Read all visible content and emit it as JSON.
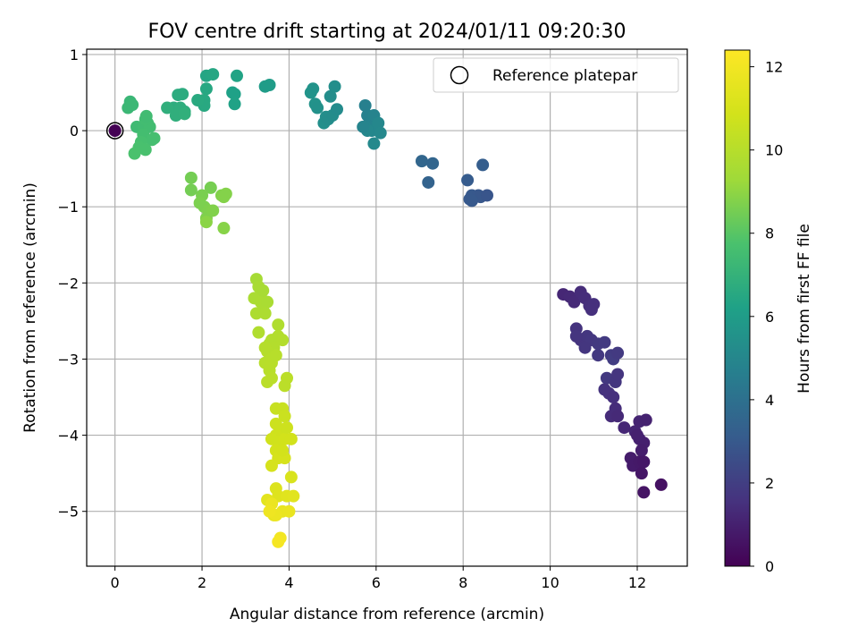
{
  "chart_data": {
    "type": "scatter",
    "title": "FOV centre drift starting at 2024/01/11 09:20:30",
    "xlabel": "Angular distance from reference (arcmin)",
    "ylabel": "Rotation from reference (arcmin)",
    "xlim": [
      -0.65,
      13.15
    ],
    "ylim": [
      -5.72,
      1.07
    ],
    "x_ticks": [
      0,
      2,
      4,
      6,
      8,
      10,
      12
    ],
    "y_ticks": [
      1,
      0,
      -1,
      -2,
      -3,
      -4,
      -5
    ],
    "grid": true,
    "legend": {
      "position": "top-right",
      "entries": [
        "Reference platepar"
      ]
    },
    "colorbar": {
      "label": "Hours from first FF file",
      "min": 0,
      "max": 12.4,
      "ticks": [
        0,
        2,
        4,
        6,
        8,
        10,
        12
      ],
      "colormap": "viridis"
    },
    "reference_point": {
      "x": 0,
      "y": 0
    },
    "points": [
      [
        10.3,
        -2.15,
        1.2
      ],
      [
        10.45,
        -2.18,
        1.25
      ],
      [
        10.55,
        -2.25,
        1.3
      ],
      [
        10.7,
        -2.12,
        1.35
      ],
      [
        10.8,
        -2.2,
        1.4
      ],
      [
        10.9,
        -2.3,
        1.45
      ],
      [
        11.0,
        -2.28,
        1.5
      ],
      [
        10.95,
        -2.35,
        1.5
      ],
      [
        10.6,
        -2.6,
        1.6
      ],
      [
        10.7,
        -2.75,
        1.65
      ],
      [
        10.85,
        -2.7,
        1.7
      ],
      [
        10.95,
        -2.75,
        1.75
      ],
      [
        11.1,
        -2.8,
        1.8
      ],
      [
        11.25,
        -2.78,
        1.85
      ],
      [
        11.4,
        -2.95,
        1.9
      ],
      [
        11.45,
        -3.0,
        1.95
      ],
      [
        11.3,
        -3.25,
        1.8
      ],
      [
        11.5,
        -3.3,
        1.7
      ],
      [
        11.55,
        -3.2,
        1.65
      ],
      [
        11.25,
        -3.4,
        1.6
      ],
      [
        11.35,
        -3.45,
        1.55
      ],
      [
        11.45,
        -3.5,
        1.5
      ],
      [
        11.5,
        -3.65,
        1.4
      ],
      [
        11.4,
        -3.75,
        1.35
      ],
      [
        11.55,
        -3.75,
        1.3
      ],
      [
        11.7,
        -3.9,
        1.2
      ],
      [
        11.95,
        -3.95,
        1.15
      ],
      [
        12.05,
        -3.82,
        1.1
      ],
      [
        12.2,
        -3.8,
        1.05
      ],
      [
        12.05,
        -4.05,
        1.0
      ],
      [
        12.15,
        -4.1,
        0.95
      ],
      [
        12.1,
        -4.2,
        0.9
      ],
      [
        11.85,
        -4.3,
        0.85
      ],
      [
        11.9,
        -4.4,
        0.8
      ],
      [
        12.05,
        -4.35,
        0.75
      ],
      [
        12.15,
        -4.35,
        0.7
      ],
      [
        12.1,
        -4.5,
        0.65
      ],
      [
        12.15,
        -4.75,
        0.6
      ],
      [
        12.55,
        -4.65,
        0.5
      ],
      [
        10.8,
        -2.85,
        1.7
      ],
      [
        10.6,
        -2.7,
        1.65
      ],
      [
        11.1,
        -2.95,
        1.8
      ],
      [
        11.55,
        -2.92,
        1.85
      ],
      [
        12.0,
        -4.0,
        1.0
      ],
      [
        5.75,
        0.33,
        4.7
      ],
      [
        5.8,
        0.2,
        4.75
      ],
      [
        5.85,
        0.1,
        4.8
      ],
      [
        5.95,
        0.2,
        4.85
      ],
      [
        5.75,
        0.05,
        4.9
      ],
      [
        5.9,
        0.0,
        4.95
      ],
      [
        6.05,
        0.1,
        5.0
      ],
      [
        6.1,
        -0.03,
        5.05
      ],
      [
        5.95,
        -0.17,
        5.1
      ],
      [
        5.8,
        0.0,
        5.0
      ],
      [
        5.7,
        0.05,
        4.9
      ],
      [
        7.05,
        -0.4,
        3.55
      ],
      [
        7.3,
        -0.43,
        3.5
      ],
      [
        7.2,
        -0.68,
        3.4
      ],
      [
        8.1,
        -0.65,
        3.1
      ],
      [
        8.15,
        -0.9,
        3.0
      ],
      [
        8.2,
        -0.85,
        3.0
      ],
      [
        8.35,
        -0.85,
        2.95
      ],
      [
        8.4,
        -0.87,
        2.9
      ],
      [
        8.55,
        -0.85,
        2.85
      ],
      [
        8.45,
        -0.45,
        3.2
      ],
      [
        8.2,
        -0.92,
        3.0
      ],
      [
        4.5,
        0.5,
        5.6
      ],
      [
        4.55,
        0.55,
        5.55
      ],
      [
        4.6,
        0.35,
        5.5
      ],
      [
        4.65,
        0.3,
        5.45
      ],
      [
        4.8,
        0.1,
        5.4
      ],
      [
        4.85,
        0.18,
        5.35
      ],
      [
        4.9,
        0.15,
        5.3
      ],
      [
        5.0,
        0.2,
        5.25
      ],
      [
        5.1,
        0.28,
        5.2
      ],
      [
        4.95,
        0.45,
        5.3
      ],
      [
        5.05,
        0.58,
        5.35
      ],
      [
        3.45,
        0.58,
        5.95
      ],
      [
        3.55,
        0.6,
        5.95
      ],
      [
        2.7,
        0.5,
        6.2
      ],
      [
        2.75,
        0.48,
        6.2
      ],
      [
        2.75,
        0.35,
        6.25
      ],
      [
        2.8,
        0.72,
        6.3
      ],
      [
        2.1,
        0.72,
        6.4
      ],
      [
        2.25,
        0.74,
        6.45
      ],
      [
        2.1,
        0.55,
        6.5
      ],
      [
        2.05,
        0.4,
        6.55
      ],
      [
        2.05,
        0.33,
        6.55
      ],
      [
        1.9,
        0.4,
        6.6
      ],
      [
        1.55,
        0.48,
        6.7
      ],
      [
        1.45,
        0.47,
        6.7
      ],
      [
        1.35,
        0.3,
        6.75
      ],
      [
        1.5,
        0.3,
        6.8
      ],
      [
        1.6,
        0.25,
        6.8
      ],
      [
        1.4,
        0.2,
        6.85
      ],
      [
        1.2,
        0.3,
        6.85
      ],
      [
        1.6,
        0.22,
        6.9
      ],
      [
        0.35,
        0.38,
        7.2
      ],
      [
        0.3,
        0.3,
        7.25
      ],
      [
        0.4,
        0.34,
        7.25
      ],
      [
        0.5,
        0.05,
        7.4
      ],
      [
        0.65,
        0.05,
        7.45
      ],
      [
        0.75,
        0.1,
        7.45
      ],
      [
        0.8,
        0.05,
        7.5
      ],
      [
        0.7,
        0.15,
        7.5
      ],
      [
        0.72,
        0.19,
        7.45
      ],
      [
        0.65,
        -0.05,
        7.55
      ],
      [
        0.85,
        -0.12,
        7.6
      ],
      [
        0.9,
        -0.1,
        7.6
      ],
      [
        0.6,
        -0.15,
        7.65
      ],
      [
        0.55,
        -0.22,
        7.7
      ],
      [
        0.7,
        -0.25,
        7.7
      ],
      [
        0.45,
        -0.3,
        7.75
      ],
      [
        1.75,
        -0.62,
        8.5
      ],
      [
        1.75,
        -0.78,
        8.5
      ],
      [
        2.2,
        -0.75,
        8.55
      ],
      [
        2.0,
        -0.85,
        8.6
      ],
      [
        1.95,
        -0.95,
        8.65
      ],
      [
        2.05,
        -1.0,
        8.65
      ],
      [
        2.15,
        -1.05,
        8.7
      ],
      [
        2.1,
        -1.15,
        8.7
      ],
      [
        2.25,
        -1.05,
        8.75
      ],
      [
        2.45,
        -0.85,
        8.75
      ],
      [
        2.5,
        -0.87,
        8.8
      ],
      [
        2.55,
        -0.83,
        8.8
      ],
      [
        2.5,
        -1.28,
        8.85
      ],
      [
        2.1,
        -1.2,
        8.9
      ],
      [
        3.25,
        -1.95,
        9.5
      ],
      [
        3.3,
        -2.05,
        9.55
      ],
      [
        3.35,
        -2.15,
        9.6
      ],
      [
        3.2,
        -2.2,
        9.6
      ],
      [
        3.35,
        -2.25,
        9.65
      ],
      [
        3.4,
        -2.35,
        9.65
      ],
      [
        3.25,
        -2.4,
        9.7
      ],
      [
        3.4,
        -2.1,
        9.55
      ],
      [
        3.5,
        -2.25,
        9.6
      ],
      [
        3.45,
        -2.4,
        9.7
      ],
      [
        3.3,
        -2.65,
        9.8
      ],
      [
        3.55,
        -2.8,
        9.85
      ],
      [
        3.6,
        -2.75,
        9.85
      ],
      [
        3.75,
        -2.55,
        9.8
      ],
      [
        3.75,
        -2.7,
        9.85
      ],
      [
        3.85,
        -2.75,
        9.9
      ],
      [
        3.65,
        -2.85,
        9.9
      ],
      [
        3.5,
        -2.9,
        9.95
      ],
      [
        3.6,
        -3.0,
        10.0
      ],
      [
        3.45,
        -3.05,
        10.0
      ],
      [
        3.55,
        -3.15,
        10.05
      ],
      [
        3.6,
        -3.25,
        10.1
      ],
      [
        3.5,
        -3.3,
        10.1
      ],
      [
        3.95,
        -3.25,
        10.15
      ],
      [
        3.9,
        -3.35,
        10.15
      ],
      [
        3.6,
        -3.05,
        10.05
      ],
      [
        3.7,
        -2.95,
        10.0
      ],
      [
        3.45,
        -2.85,
        9.95
      ],
      [
        3.7,
        -3.65,
        10.5
      ],
      [
        3.85,
        -3.65,
        10.55
      ],
      [
        3.9,
        -3.75,
        10.6
      ],
      [
        3.8,
        -3.95,
        10.7
      ],
      [
        3.7,
        -4.0,
        10.75
      ],
      [
        3.6,
        -4.05,
        10.8
      ],
      [
        3.75,
        -4.1,
        10.8
      ],
      [
        3.9,
        -4.05,
        10.85
      ],
      [
        4.05,
        -4.05,
        10.85
      ],
      [
        3.7,
        -4.2,
        10.9
      ],
      [
        3.75,
        -4.3,
        10.95
      ],
      [
        3.6,
        -4.4,
        11.0
      ],
      [
        3.9,
        -4.3,
        11.0
      ],
      [
        3.7,
        -3.85,
        10.65
      ],
      [
        3.95,
        -3.9,
        10.7
      ],
      [
        3.85,
        -4.2,
        10.9
      ],
      [
        4.05,
        -4.55,
        11.1
      ],
      [
        3.7,
        -4.7,
        11.2
      ],
      [
        3.75,
        -4.8,
        11.3
      ],
      [
        3.95,
        -4.8,
        11.35
      ],
      [
        4.1,
        -4.8,
        11.4
      ],
      [
        3.5,
        -4.85,
        11.45
      ],
      [
        3.6,
        -4.9,
        11.5
      ],
      [
        3.65,
        -5.05,
        11.6
      ],
      [
        3.85,
        -5.0,
        11.65
      ],
      [
        4.0,
        -5.0,
        11.7
      ],
      [
        3.6,
        -4.9,
        11.75
      ],
      [
        3.7,
        -5.05,
        11.8
      ],
      [
        3.8,
        -5.35,
        12.0
      ],
      [
        3.75,
        -5.4,
        12.1
      ],
      [
        3.55,
        -5.0,
        11.9
      ]
    ]
  }
}
